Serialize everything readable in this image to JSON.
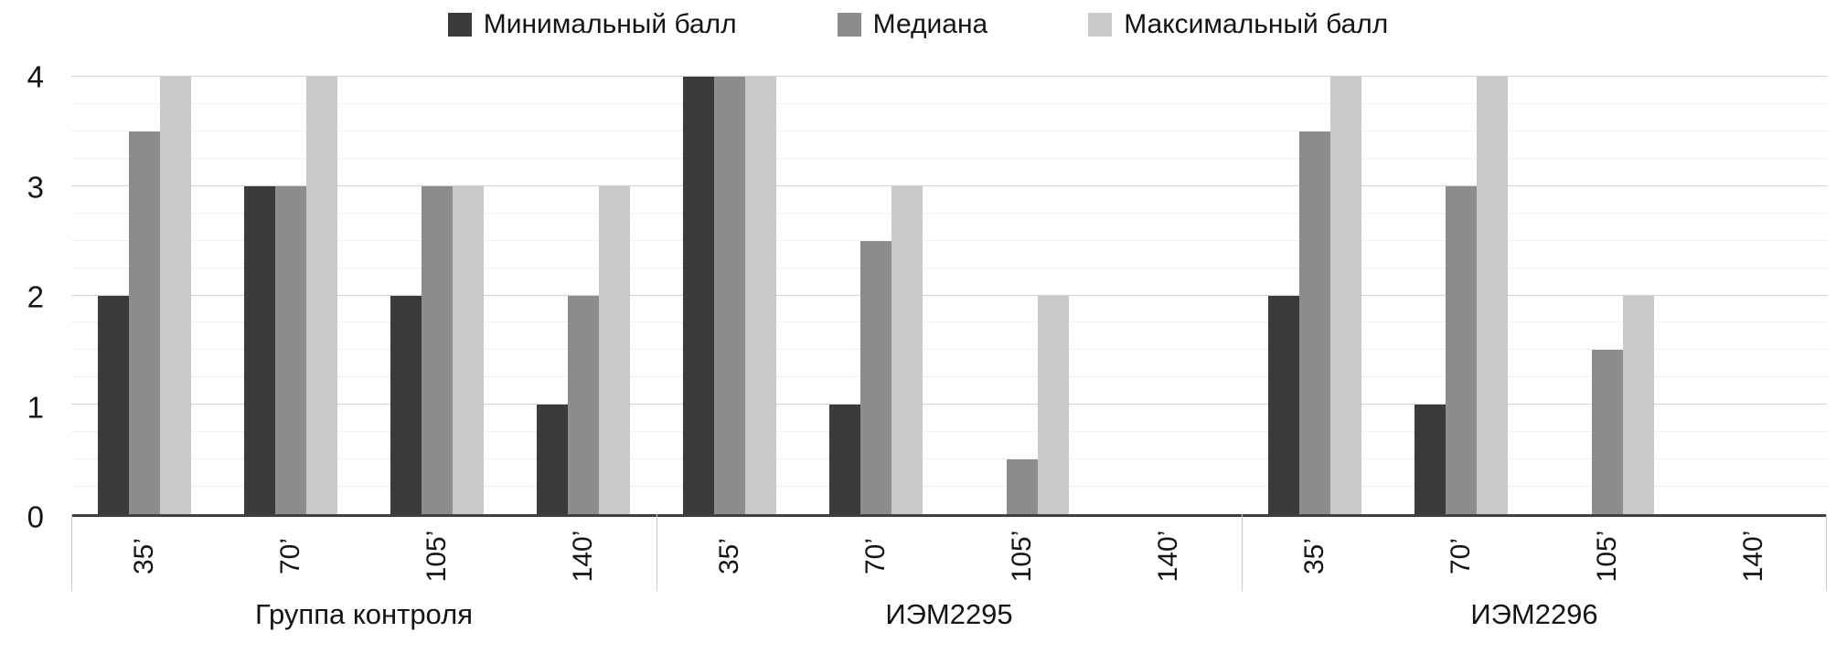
{
  "chart_data": {
    "type": "bar",
    "title": "",
    "xlabel": "",
    "ylabel": "",
    "ylim": [
      0,
      4
    ],
    "yticks": [
      0,
      1,
      2,
      3,
      4
    ],
    "y_minor_step": 0.25,
    "grid": "on",
    "legend": {
      "position": "top",
      "items": [
        {
          "label": "Минимальный балл",
          "color": "#3a3a3a"
        },
        {
          "label": "Медиана",
          "color": "#8c8c8c"
        },
        {
          "label": "Максимальный балл",
          "color": "#c9c9c9"
        }
      ]
    },
    "groups": [
      {
        "label": "Группа контроля",
        "categories": [
          "35’",
          "70’",
          "105’",
          "140’"
        ],
        "series": [
          {
            "name": "Минимальный балл",
            "values": [
              2,
              3,
              2,
              1
            ]
          },
          {
            "name": "Медиана",
            "values": [
              3.5,
              3,
              3,
              2
            ]
          },
          {
            "name": "Максимальный балл",
            "values": [
              4,
              4,
              3,
              3
            ]
          }
        ]
      },
      {
        "label": "ИЭМ2295",
        "categories": [
          "35’",
          "70’",
          "105’",
          "140’"
        ],
        "series": [
          {
            "name": "Минимальный балл",
            "values": [
              4,
              1,
              0,
              0
            ]
          },
          {
            "name": "Медиана",
            "values": [
              4,
              2.5,
              0.5,
              0
            ]
          },
          {
            "name": "Максимальный балл",
            "values": [
              4,
              3,
              2,
              0
            ]
          }
        ]
      },
      {
        "label": "ИЭМ2296",
        "categories": [
          "35’",
          "70’",
          "105’",
          "140’"
        ],
        "series": [
          {
            "name": "Минимальный балл",
            "values": [
              2,
              1,
              0,
              0
            ]
          },
          {
            "name": "Медиана",
            "values": [
              3.5,
              3,
              1.5,
              0
            ]
          },
          {
            "name": "Максимальный балл",
            "values": [
              4,
              4,
              2,
              0
            ]
          }
        ]
      }
    ]
  }
}
